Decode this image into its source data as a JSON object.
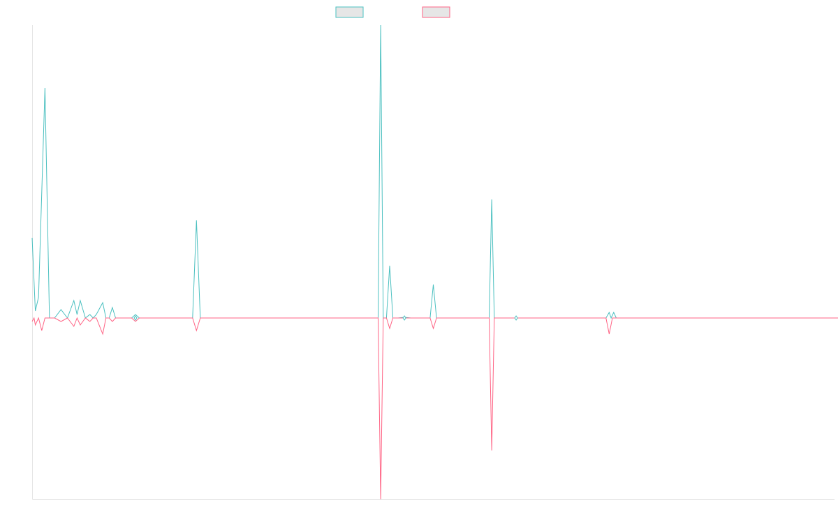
{
  "colors": {
    "series_a": "#4bc0c0",
    "series_b": "#ff6384",
    "axis": "#e5e5e5",
    "legend_fill": "#e6e6e6"
  },
  "legend": {
    "placement": "top-center"
  },
  "chart_data": {
    "type": "line",
    "grid": false,
    "x_count": 126,
    "ylim": [
      -2.6,
      4.2
    ],
    "series": [
      {
        "color": "#4bc0c0",
        "points": [
          [
            0,
            1.15
          ],
          [
            0.5,
            0.1
          ],
          [
            1,
            0.3
          ],
          [
            2,
            3.3
          ],
          [
            2.7,
            0
          ],
          [
            3.5,
            0
          ],
          [
            4.5,
            0.12
          ],
          [
            5.5,
            0
          ],
          [
            6.5,
            0.25
          ],
          [
            7,
            0.05
          ],
          [
            7.5,
            0.25
          ],
          [
            8.3,
            0
          ],
          [
            9,
            0.05
          ],
          [
            9.5,
            0
          ],
          [
            10,
            0.05
          ],
          [
            11,
            0.22
          ],
          [
            11.5,
            0
          ],
          [
            12,
            0
          ],
          [
            12.5,
            0.15
          ],
          [
            13,
            0
          ],
          [
            14,
            0
          ],
          [
            15.5,
            0
          ],
          [
            16.1,
            0.05
          ],
          [
            16.7,
            0
          ],
          [
            25,
            0
          ],
          [
            25.6,
            1.4
          ],
          [
            26.2,
            0
          ],
          [
            53.9,
            0
          ],
          [
            54.3,
            4.2
          ],
          [
            54.7,
            0
          ],
          [
            55.2,
            0
          ],
          [
            55.7,
            0.75
          ],
          [
            56.2,
            0
          ],
          [
            57,
            0
          ],
          [
            58,
            0.01
          ],
          [
            59,
            0
          ],
          [
            62,
            0
          ],
          [
            62.5,
            0.48
          ],
          [
            63,
            0
          ],
          [
            71.2,
            0
          ],
          [
            71.6,
            1.7
          ],
          [
            72,
            0
          ],
          [
            80,
            0
          ],
          [
            89.4,
            0
          ],
          [
            89.9,
            0.08
          ],
          [
            90.2,
            0
          ],
          [
            90.6,
            0.08
          ],
          [
            91,
            0
          ],
          [
            126,
            0
          ]
        ]
      },
      {
        "color": "#ff6384",
        "points": [
          [
            0,
            -0.05
          ],
          [
            0.3,
            0
          ],
          [
            0.5,
            -0.1
          ],
          [
            1,
            0
          ],
          [
            1.5,
            -0.18
          ],
          [
            2,
            0
          ],
          [
            2.7,
            0
          ],
          [
            3.5,
            0
          ],
          [
            4.5,
            -0.05
          ],
          [
            5.5,
            0
          ],
          [
            6.5,
            -0.12
          ],
          [
            7,
            0
          ],
          [
            7.5,
            -0.1
          ],
          [
            8.3,
            0
          ],
          [
            9,
            -0.05
          ],
          [
            9.5,
            0
          ],
          [
            10,
            0
          ],
          [
            11,
            -0.23
          ],
          [
            11.5,
            0
          ],
          [
            12,
            0
          ],
          [
            12.5,
            -0.05
          ],
          [
            13,
            0
          ],
          [
            14,
            0
          ],
          [
            15.5,
            0
          ],
          [
            16.1,
            -0.05
          ],
          [
            16.7,
            0
          ],
          [
            25,
            0
          ],
          [
            25.6,
            -0.18
          ],
          [
            26.2,
            0
          ],
          [
            53.9,
            0
          ],
          [
            54.3,
            -2.6
          ],
          [
            54.7,
            0
          ],
          [
            55.2,
            0
          ],
          [
            55.7,
            -0.15
          ],
          [
            56.2,
            0
          ],
          [
            62,
            0
          ],
          [
            62.5,
            -0.15
          ],
          [
            63,
            0
          ],
          [
            71.2,
            0
          ],
          [
            71.6,
            -1.9
          ],
          [
            72,
            0
          ],
          [
            80,
            0
          ],
          [
            89.4,
            0
          ],
          [
            89.9,
            -0.23
          ],
          [
            90.4,
            0
          ],
          [
            126,
            0
          ]
        ]
      }
    ]
  }
}
